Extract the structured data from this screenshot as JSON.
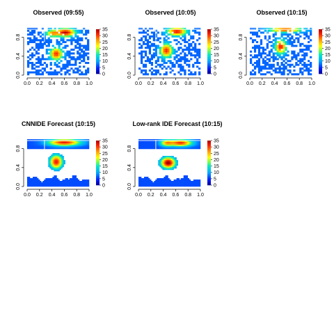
{
  "chart_data": [
    {
      "type": "heatmap",
      "title": "Observed (09:55)",
      "xlabel": "",
      "ylabel": "",
      "xlim": [
        0,
        1
      ],
      "ylim": [
        0,
        1
      ],
      "x_ticks": [
        "0.0",
        "0.2",
        "0.4",
        "0.6",
        "0.8",
        "1.0"
      ],
      "y_ticks": [
        "0.0",
        "0.4",
        "0.8"
      ],
      "colorbar_range": [
        0,
        35
      ],
      "colorbar_ticks": [
        "0",
        "5",
        "10",
        "15",
        "20",
        "25",
        "30",
        "35"
      ],
      "observation": "sparse",
      "hotspots": [
        {
          "x": 0.62,
          "y": 0.9,
          "peak": 34,
          "sx": 0.11,
          "sy": 0.06
        },
        {
          "x": 0.4,
          "y": 0.88,
          "peak": 24,
          "sx": 0.07,
          "sy": 0.05
        },
        {
          "x": 0.47,
          "y": 0.45,
          "peak": 31,
          "sx": 0.07,
          "sy": 0.09
        }
      ],
      "background": 7
    },
    {
      "type": "heatmap",
      "title": "Observed (10:05)",
      "xlabel": "",
      "ylabel": "",
      "xlim": [
        0,
        1
      ],
      "ylim": [
        0,
        1
      ],
      "x_ticks": [
        "0.0",
        "0.2",
        "0.4",
        "0.6",
        "0.8",
        "1.0"
      ],
      "y_ticks": [
        "0.0",
        "0.4",
        "0.8"
      ],
      "colorbar_range": [
        0,
        35
      ],
      "colorbar_ticks": [
        "0",
        "5",
        "10",
        "15",
        "20",
        "25",
        "30",
        "35"
      ],
      "observation": "sparse",
      "hotspots": [
        {
          "x": 0.62,
          "y": 0.92,
          "peak": 32,
          "sx": 0.11,
          "sy": 0.06
        },
        {
          "x": 0.45,
          "y": 0.52,
          "peak": 31,
          "sx": 0.07,
          "sy": 0.1
        }
      ],
      "background": 7
    },
    {
      "type": "heatmap",
      "title": "Observed (10:15)",
      "xlabel": "",
      "ylabel": "",
      "xlim": [
        0,
        1
      ],
      "ylim": [
        0,
        1
      ],
      "x_ticks": [
        "0.0",
        "0.2",
        "0.4",
        "0.6",
        "0.8",
        "1.0"
      ],
      "y_ticks": [
        "0.0",
        "0.4",
        "0.8"
      ],
      "colorbar_range": [
        0,
        35
      ],
      "colorbar_ticks": [
        "0",
        "5",
        "10",
        "15",
        "20",
        "25",
        "30",
        "35"
      ],
      "observation": "sparse",
      "hotspots": [
        {
          "x": 0.58,
          "y": 0.96,
          "peak": 30,
          "sx": 0.18,
          "sy": 0.04
        },
        {
          "x": 0.5,
          "y": 0.6,
          "peak": 32,
          "sx": 0.06,
          "sy": 0.1
        }
      ],
      "background": 7
    },
    {
      "type": "heatmap",
      "title": "CNNIDE Forecast (10:15)",
      "xlabel": "",
      "ylabel": "",
      "xlim": [
        0,
        1
      ],
      "ylim": [
        0,
        1
      ],
      "x_ticks": [
        "0.0",
        "0.2",
        "0.4",
        "0.6",
        "0.8",
        "1.0"
      ],
      "y_ticks": [
        "0.0",
        "0.4",
        "0.8"
      ],
      "colorbar_range": [
        0,
        35
      ],
      "colorbar_ticks": [
        "0",
        "5",
        "10",
        "15",
        "20",
        "25",
        "30",
        "35"
      ],
      "observation": "forecast",
      "hotspots": [
        {
          "x": 0.6,
          "y": 0.93,
          "peak": 32,
          "sx": 0.18,
          "sy": 0.05
        },
        {
          "x": 0.47,
          "y": 0.52,
          "peak": 32,
          "sx": 0.07,
          "sy": 0.1
        }
      ],
      "background": 6
    },
    {
      "type": "heatmap",
      "title": "Low-rank IDE Forecast (10:15)",
      "xlabel": "",
      "ylabel": "",
      "xlim": [
        0,
        1
      ],
      "ylim": [
        0,
        1
      ],
      "x_ticks": [
        "0.0",
        "0.2",
        "0.4",
        "0.6",
        "0.8",
        "1.0"
      ],
      "y_ticks": [
        "0.0",
        "0.4",
        "0.8"
      ],
      "colorbar_range": [
        0,
        35
      ],
      "colorbar_ticks": [
        "0",
        "5",
        "10",
        "15",
        "20",
        "25",
        "30",
        "35"
      ],
      "observation": "forecast",
      "hotspots": [
        {
          "x": 0.68,
          "y": 0.92,
          "peak": 31,
          "sx": 0.13,
          "sy": 0.05
        },
        {
          "x": 0.45,
          "y": 0.92,
          "peak": 22,
          "sx": 0.07,
          "sy": 0.05
        },
        {
          "x": 0.48,
          "y": 0.5,
          "peak": 36,
          "sx": 0.08,
          "sy": 0.08
        }
      ],
      "background": 6
    }
  ]
}
